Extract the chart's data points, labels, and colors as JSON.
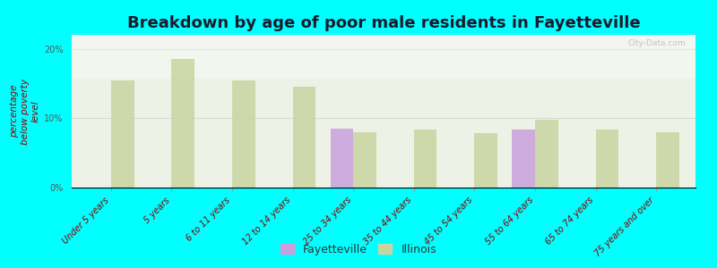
{
  "title": "Breakdown by age of poor male residents in Fayetteville",
  "ylabel": "percentage\nbelow poverty\nlevel",
  "background_color": "#00FFFF",
  "plot_bg_color": "#eef2e6",
  "categories": [
    "Under 5 years",
    "5 years",
    "6 to 11 years",
    "12 to 14 years",
    "25 to 34 years",
    "35 to 44 years",
    "45 to 54 years",
    "55 to 64 years",
    "65 to 74 years",
    "75 years and over"
  ],
  "fayetteville_values": [
    0,
    0,
    0,
    0,
    8.5,
    0,
    0,
    8.3,
    0,
    0
  ],
  "illinois_values": [
    15.5,
    18.5,
    15.5,
    14.5,
    8.0,
    8.3,
    7.8,
    9.8,
    8.3,
    8.0
  ],
  "fayetteville_color": "#c9a0dc",
  "illinois_color": "#c8d5a0",
  "bar_width": 0.38,
  "ylim": [
    0,
    22
  ],
  "yticks": [
    0,
    10,
    20
  ],
  "ytick_labels": [
    "0%",
    "10%",
    "20%"
  ],
  "title_fontsize": 13,
  "axis_label_fontsize": 7.5,
  "tick_fontsize": 7,
  "legend_fontsize": 9,
  "watermark": "City-Data.com",
  "gradient_top_color": "#ffffff",
  "gradient_bottom_color": "#dde8cc"
}
